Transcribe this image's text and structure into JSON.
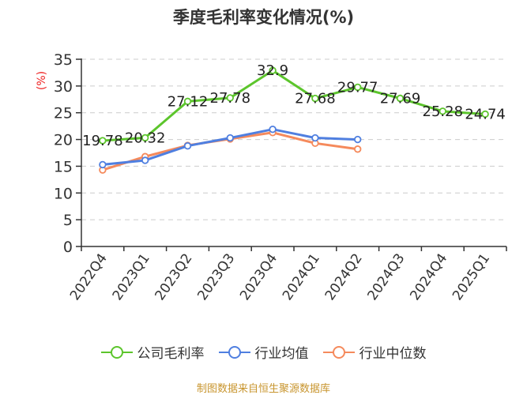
{
  "chart_data": {
    "type": "line",
    "title": "季度毛利率变化情况(%)",
    "xlabel": "",
    "ylabel": "(%)",
    "ylim": [
      0,
      35
    ],
    "yticks": [
      0,
      5,
      10,
      15,
      20,
      25,
      30,
      35
    ],
    "grid": true,
    "legend_position": "bottom",
    "categories": [
      "2022Q4",
      "2023Q1",
      "2023Q2",
      "2023Q3",
      "2023Q4",
      "2024Q1",
      "2024Q2",
      "2024Q3",
      "2024Q4",
      "2025Q1"
    ],
    "series": [
      {
        "name": "公司毛利率",
        "color": "#5cc52c",
        "show_labels": true,
        "values": [
          19.78,
          20.32,
          27.12,
          27.78,
          32.9,
          27.68,
          29.77,
          27.69,
          25.28,
          24.74
        ]
      },
      {
        "name": "行业均值",
        "color": "#4f7fe0",
        "show_labels": false,
        "values": [
          15.3,
          16.1,
          18.8,
          20.3,
          21.9,
          20.3,
          20.0,
          null,
          null,
          null
        ]
      },
      {
        "name": "行业中位数",
        "color": "#f58a5c",
        "show_labels": false,
        "values": [
          14.3,
          16.8,
          18.9,
          20.1,
          21.3,
          19.3,
          18.2,
          null,
          null,
          null
        ]
      }
    ]
  },
  "header": {
    "title": "季度毛利率变化情况(%)"
  },
  "axis": {
    "y_unit_label": "(%)",
    "y_unit_color": "#ee2222"
  },
  "legend": {
    "items": [
      {
        "label": "公司毛利率",
        "color": "#5cc52c"
      },
      {
        "label": "行业均值",
        "color": "#4f7fe0"
      },
      {
        "label": "行业中位数",
        "color": "#f58a5c"
      }
    ]
  },
  "footer": {
    "source": "制图数据来自恒生聚源数据库"
  }
}
